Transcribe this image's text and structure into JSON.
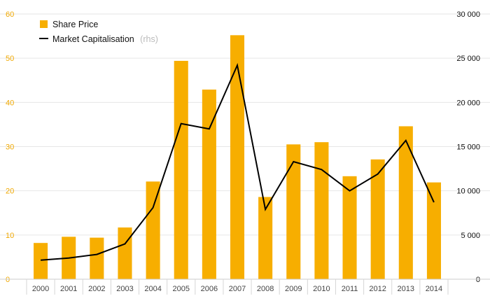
{
  "colors": {
    "bar": "#f7ae00",
    "line": "#000000",
    "grid": "#e6e6e6",
    "left_axis_text": "#f0a800",
    "right_axis_text": "#111111"
  },
  "legend": {
    "position": "top-left",
    "bar_label": "Share Price",
    "line_label": "Market Capitalisation",
    "line_note": "(rhs)"
  },
  "chart_data": {
    "type": "bar",
    "grid": true,
    "categories": [
      "2000",
      "2001",
      "2002",
      "2003",
      "2004",
      "2005",
      "2006",
      "2007",
      "2008",
      "2009",
      "2010",
      "2011",
      "2012",
      "2013",
      "2014"
    ],
    "series": [
      {
        "name": "Share Price",
        "type": "bar",
        "axis": "left",
        "values": [
          8.2,
          9.6,
          9.4,
          11.7,
          22.1,
          49.4,
          42.9,
          55.2,
          18.6,
          30.5,
          31.0,
          23.3,
          27.1,
          34.6,
          21.9
        ]
      },
      {
        "name": "Market Capitalisation (rhs)",
        "type": "line",
        "axis": "right",
        "values": [
          2150,
          2400,
          2800,
          4000,
          8100,
          17600,
          17000,
          24200,
          7900,
          13300,
          12400,
          10000,
          11900,
          15700,
          8700
        ]
      }
    ],
    "y_left": {
      "lim": [
        0,
        60
      ],
      "ticks": [
        0,
        10,
        20,
        30,
        40,
        50,
        60
      ],
      "tick_labels": [
        "0",
        "10",
        "20",
        "30",
        "40",
        "50",
        "60"
      ]
    },
    "y_right": {
      "lim": [
        0,
        30000
      ],
      "ticks": [
        0,
        5000,
        10000,
        15000,
        20000,
        25000,
        30000
      ],
      "tick_labels": [
        "0",
        "5 000",
        "10 000",
        "15 000",
        "20 000",
        "25 000",
        "30 000"
      ]
    }
  }
}
